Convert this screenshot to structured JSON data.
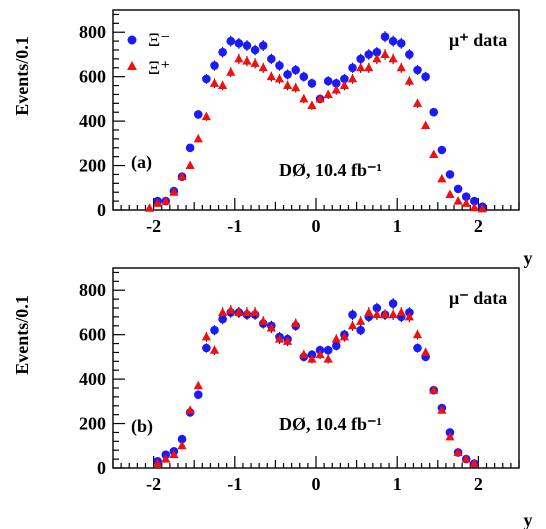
{
  "chart_data": [
    {
      "type": "scatter",
      "panel_label": "(a)",
      "annotation_sample": "μ⁺ data",
      "annotation_experiment": "DØ, 10.4 fb⁻¹",
      "xlabel": "y",
      "ylabel": "Events/0.1",
      "xlim": [
        -2.5,
        2.5
      ],
      "ylim": [
        0,
        900
      ],
      "xticks": [
        "-2",
        "-1",
        "0",
        "1",
        "2"
      ],
      "yticks": [
        "0",
        "200",
        "400",
        "600",
        "800"
      ],
      "legend_position": "top-left",
      "series": [
        {
          "name": "Ξ⁻",
          "marker": "circle",
          "color": "#1a1aff",
          "x": [
            -1.95,
            -1.85,
            -1.75,
            -1.65,
            -1.55,
            -1.45,
            -1.35,
            -1.25,
            -1.15,
            -1.05,
            -0.95,
            -0.85,
            -0.75,
            -0.65,
            -0.55,
            -0.45,
            -0.35,
            -0.25,
            -0.15,
            -0.05,
            0.05,
            0.15,
            0.25,
            0.35,
            0.45,
            0.55,
            0.65,
            0.75,
            0.85,
            0.95,
            1.05,
            1.15,
            1.25,
            1.35,
            1.45,
            1.55,
            1.65,
            1.75,
            1.85,
            1.95,
            2.05
          ],
          "y": [
            40,
            40,
            85,
            150,
            280,
            430,
            590,
            650,
            710,
            760,
            750,
            740,
            720,
            740,
            680,
            650,
            610,
            630,
            600,
            570,
            500,
            580,
            570,
            590,
            640,
            680,
            700,
            710,
            780,
            760,
            750,
            700,
            630,
            600,
            440,
            270,
            160,
            95,
            60,
            40,
            15
          ]
        },
        {
          "name": "Ξ⁺",
          "marker": "triangle",
          "color": "#ee1111",
          "x": [
            -2.05,
            -1.95,
            -1.85,
            -1.75,
            -1.65,
            -1.55,
            -1.45,
            -1.35,
            -1.25,
            -1.15,
            -1.05,
            -0.95,
            -0.85,
            -0.75,
            -0.65,
            -0.55,
            -0.45,
            -0.35,
            -0.25,
            -0.15,
            -0.05,
            0.05,
            0.15,
            0.25,
            0.35,
            0.45,
            0.55,
            0.65,
            0.75,
            0.85,
            0.95,
            1.05,
            1.15,
            1.25,
            1.35,
            1.45,
            1.55,
            1.65,
            1.75,
            1.85,
            1.95,
            2.05
          ],
          "y": [
            8,
            30,
            40,
            80,
            150,
            200,
            320,
            420,
            570,
            560,
            620,
            680,
            670,
            660,
            640,
            600,
            590,
            560,
            550,
            500,
            470,
            500,
            520,
            540,
            560,
            590,
            640,
            640,
            680,
            700,
            680,
            640,
            580,
            480,
            380,
            250,
            140,
            70,
            40,
            30,
            10,
            5
          ]
        }
      ]
    },
    {
      "type": "scatter",
      "panel_label": "(b)",
      "annotation_sample": "μ⁻ data",
      "annotation_experiment": "DØ, 10.4 fb⁻¹",
      "xlabel": "y",
      "ylabel": "Events/0.1",
      "xlim": [
        -2.5,
        2.5
      ],
      "ylim": [
        0,
        900
      ],
      "xticks": [
        "-2",
        "-1",
        "0",
        "1",
        "2"
      ],
      "yticks": [
        "0",
        "200",
        "400",
        "600",
        "800"
      ],
      "series": [
        {
          "name": "Ξ⁻",
          "marker": "circle",
          "color": "#1a1aff",
          "x": [
            -1.95,
            -1.85,
            -1.75,
            -1.65,
            -1.55,
            -1.45,
            -1.35,
            -1.25,
            -1.15,
            -1.05,
            -0.95,
            -0.85,
            -0.75,
            -0.65,
            -0.55,
            -0.45,
            -0.35,
            -0.25,
            -0.15,
            -0.05,
            0.05,
            0.15,
            0.25,
            0.35,
            0.45,
            0.55,
            0.65,
            0.75,
            0.85,
            0.95,
            1.05,
            1.15,
            1.25,
            1.35,
            1.45,
            1.55,
            1.65,
            1.75,
            1.85,
            1.95
          ],
          "y": [
            30,
            60,
            75,
            130,
            250,
            330,
            540,
            620,
            670,
            700,
            700,
            690,
            690,
            650,
            640,
            590,
            580,
            640,
            500,
            510,
            530,
            530,
            550,
            600,
            690,
            620,
            680,
            720,
            690,
            740,
            680,
            700,
            540,
            500,
            350,
            270,
            160,
            70,
            40,
            20
          ]
        },
        {
          "name": "Ξ⁺",
          "marker": "triangle",
          "color": "#ee1111",
          "x": [
            -1.95,
            -1.85,
            -1.75,
            -1.65,
            -1.55,
            -1.45,
            -1.35,
            -1.25,
            -1.15,
            -1.05,
            -0.95,
            -0.85,
            -0.75,
            -0.65,
            -0.55,
            -0.45,
            -0.35,
            -0.25,
            -0.15,
            -0.05,
            0.05,
            0.15,
            0.25,
            0.35,
            0.45,
            0.55,
            0.65,
            0.75,
            0.85,
            0.95,
            1.05,
            1.15,
            1.25,
            1.35,
            1.45,
            1.55,
            1.65,
            1.75,
            1.85,
            1.95
          ],
          "y": [
            20,
            40,
            60,
            100,
            260,
            370,
            590,
            530,
            700,
            710,
            700,
            700,
            700,
            660,
            630,
            580,
            570,
            650,
            510,
            490,
            510,
            490,
            580,
            590,
            640,
            660,
            700,
            690,
            690,
            690,
            700,
            680,
            600,
            520,
            350,
            260,
            140,
            70,
            40,
            20
          ]
        }
      ]
    }
  ]
}
